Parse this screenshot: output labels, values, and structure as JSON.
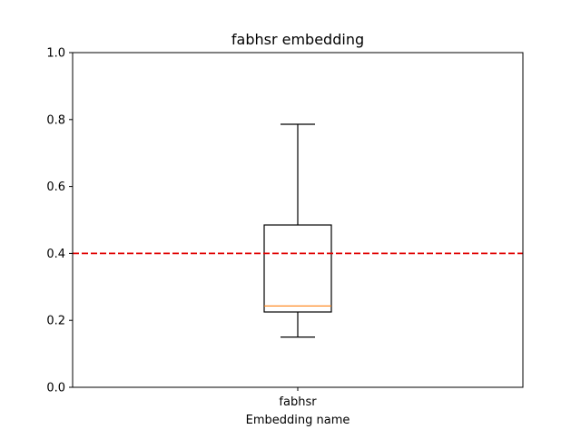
{
  "chart_data": {
    "type": "box",
    "title": "fabhsr embedding",
    "xlabel": "Embedding name",
    "ylabel": "",
    "categories": [
      "fabhsr"
    ],
    "boxes": [
      {
        "category": "fabhsr",
        "whisker_low": 0.15,
        "q1": 0.225,
        "median": 0.243,
        "q3": 0.485,
        "whisker_high": 0.786
      }
    ],
    "ylim": [
      0,
      1.0
    ],
    "yticks": [
      "0.0",
      "0.2",
      "0.4",
      "0.6",
      "0.8",
      "1.0"
    ],
    "reference_line": {
      "y": 0.4,
      "style": "dashed",
      "color": "#d62728"
    },
    "grid": false,
    "colors": {
      "box": "#000000",
      "median": "#ff7f0e",
      "reference": "#e00000"
    }
  }
}
